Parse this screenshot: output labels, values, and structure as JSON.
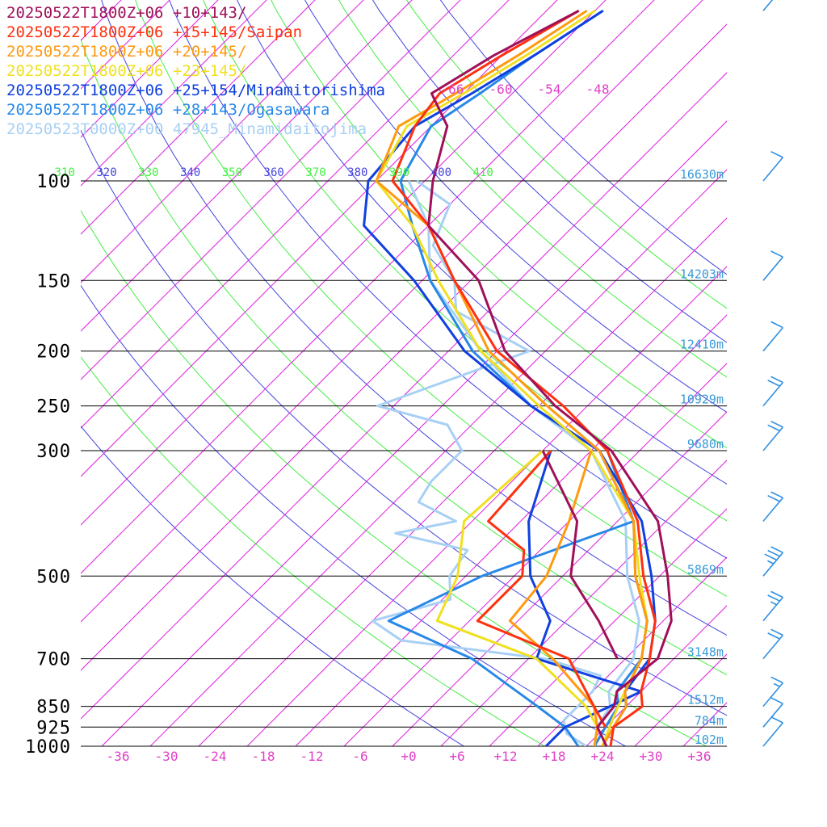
{
  "chart_data": {
    "type": "line",
    "title": "",
    "xlabel": "",
    "ylabel": "",
    "legend": [
      {
        "text": "20250522T1800Z+06 +10+143/",
        "color": "#a0105a"
      },
      {
        "text": "20250522T1800Z+06 +15+145/Saipan",
        "color": "#ff3010"
      },
      {
        "text": "20250522T1800Z+06 +20+145/",
        "color": "#ff9a10"
      },
      {
        "text": "20250522T1800Z+06 +23+145/",
        "color": "#f0e020"
      },
      {
        "text": "20250522T1800Z+06 +25+154/Minamitorishima",
        "color": "#1040e0"
      },
      {
        "text": "20250522T1800Z+06 +28+143/Ogasawara",
        "color": "#2888e8"
      },
      {
        "text": "20250523T0000Z+00 47945_Minamidaitojima",
        "color": "#a8d0f4"
      }
    ],
    "pressure_levels": [
      100,
      150,
      200,
      250,
      300,
      500,
      700,
      850,
      925,
      1000
    ],
    "pressure_labels": [
      "100",
      "150",
      "200",
      "250",
      "300",
      "500",
      "700",
      "850",
      "925",
      "1000"
    ],
    "heights": [
      {
        "p": 100,
        "label": "16630m"
      },
      {
        "p": 150,
        "label": "14203m"
      },
      {
        "p": 200,
        "label": "12410m"
      },
      {
        "p": 250,
        "label": "10929m"
      },
      {
        "p": 300,
        "label": "9680m"
      },
      {
        "p": 500,
        "label": "5869m"
      },
      {
        "p": 700,
        "label": "3148m"
      },
      {
        "p": 850,
        "label": "1512m"
      },
      {
        "p": 925,
        "label": "784m"
      },
      {
        "p": 1000,
        "label": "102m"
      }
    ],
    "temp_ticks": [
      "-36",
      "-30",
      "-24",
      "-18",
      "-12",
      "-6",
      "+0",
      "+6",
      "+12",
      "+18",
      "+24",
      "+30",
      "+36"
    ],
    "isotherm_labels": [
      "-66",
      "-60",
      "-54",
      "-48"
    ],
    "theta_labels": [
      "310",
      "320",
      "330",
      "340",
      "350",
      "360",
      "370",
      "380",
      "390",
      "400",
      "410"
    ],
    "colors": {
      "isotherm": "#dd22dd",
      "theta_green": "#44ee44",
      "theta_blue": "#4444dd",
      "barb": "#3090e0",
      "pressure_line": "#000000"
    },
    "series": [
      {
        "name": "20250522T1800Z+06 +10+143/",
        "color": "#a0105a",
        "temp": [
          [
            1000,
            24.5
          ],
          [
            925,
            21
          ],
          [
            850,
            20.5
          ],
          [
            800,
            19
          ],
          [
            700,
            20
          ],
          [
            600,
            17
          ],
          [
            500,
            11
          ],
          [
            400,
            3
          ],
          [
            300,
            -11.5
          ],
          [
            250,
            -24
          ],
          [
            200,
            -37
          ],
          [
            150,
            -49
          ],
          [
            120,
            -62
          ],
          [
            100,
            -67
          ],
          [
            80,
            -72
          ],
          [
            70,
            -78
          ],
          [
            60,
            -75
          ],
          [
            50,
            -70
          ]
        ],
        "dew": [
          [
            700,
            15
          ],
          [
            600,
            8
          ],
          [
            500,
            -1
          ],
          [
            400,
            -7
          ],
          [
            300,
            -20
          ]
        ]
      },
      {
        "name": "20250522T1800Z+06 +15+145/Saipan",
        "color": "#ff3010",
        "temp": [
          [
            1000,
            25
          ],
          [
            925,
            23
          ],
          [
            850,
            24
          ],
          [
            800,
            22
          ],
          [
            700,
            19
          ],
          [
            600,
            15
          ],
          [
            500,
            8
          ],
          [
            400,
            0.5
          ],
          [
            300,
            -12
          ],
          [
            250,
            -23
          ],
          [
            200,
            -38
          ],
          [
            150,
            -52
          ],
          [
            120,
            -62
          ],
          [
            100,
            -72
          ],
          [
            80,
            -76
          ],
          [
            70,
            -77
          ],
          [
            60,
            -74
          ],
          [
            50,
            -70
          ]
        ],
        "dew": [
          [
            925,
            22
          ],
          [
            850,
            18
          ],
          [
            700,
            9
          ],
          [
            600,
            -7
          ],
          [
            500,
            -7
          ],
          [
            450,
            -10
          ],
          [
            400,
            -18
          ],
          [
            300,
            -19
          ]
        ]
      },
      {
        "name": "20250522T1800Z+06 +20+145/",
        "color": "#ff9a10",
        "temp": [
          [
            1000,
            24
          ],
          [
            925,
            23
          ],
          [
            850,
            22
          ],
          [
            800,
            20
          ],
          [
            700,
            18
          ],
          [
            600,
            14
          ],
          [
            500,
            7
          ],
          [
            400,
            0
          ],
          [
            300,
            -13
          ],
          [
            250,
            -25
          ],
          [
            200,
            -39
          ],
          [
            150,
            -52
          ],
          [
            120,
            -62
          ],
          [
            100,
            -74
          ],
          [
            80,
            -78
          ],
          [
            70,
            -75
          ],
          [
            60,
            -72
          ],
          [
            50,
            -69
          ]
        ],
        "dew": [
          [
            1000,
            23
          ],
          [
            925,
            21
          ],
          [
            850,
            18
          ],
          [
            700,
            7
          ],
          [
            600,
            -3
          ],
          [
            500,
            -4
          ],
          [
            400,
            -8
          ],
          [
            300,
            -14
          ]
        ]
      },
      {
        "name": "20250522T1800Z+06 +23+145/",
        "color": "#f0e020",
        "temp": [
          [
            1000,
            24
          ],
          [
            925,
            22.5
          ],
          [
            850,
            21
          ],
          [
            800,
            20
          ],
          [
            700,
            18
          ],
          [
            600,
            14
          ],
          [
            500,
            7.5
          ],
          [
            400,
            0
          ],
          [
            300,
            -14
          ],
          [
            250,
            -26
          ],
          [
            200,
            -40
          ],
          [
            150,
            -54
          ],
          [
            120,
            -64
          ],
          [
            100,
            -74
          ],
          [
            80,
            -77
          ],
          [
            70,
            -74
          ],
          [
            60,
            -71
          ],
          [
            50,
            -68
          ]
        ],
        "dew": [
          [
            1000,
            23
          ],
          [
            925,
            21
          ],
          [
            850,
            17
          ],
          [
            700,
            5
          ],
          [
            600,
            -12
          ],
          [
            500,
            -15
          ],
          [
            400,
            -21
          ],
          [
            300,
            -20
          ]
        ]
      },
      {
        "name": "20250522T1800Z+06 +25+154/Minamitorishima",
        "color": "#1040e0",
        "temp": [
          [
            1000,
            24
          ],
          [
            925,
            23
          ],
          [
            850,
            22
          ],
          [
            800,
            20
          ],
          [
            700,
            19
          ],
          [
            600,
            15
          ],
          [
            500,
            9
          ],
          [
            400,
            1
          ],
          [
            300,
            -13
          ],
          [
            250,
            -27
          ],
          [
            200,
            -42
          ],
          [
            150,
            -57
          ],
          [
            120,
            -70
          ],
          [
            100,
            -75
          ],
          [
            80,
            -76
          ],
          [
            70,
            -73
          ],
          [
            60,
            -70
          ],
          [
            50,
            -67
          ]
        ],
        "dew": [
          [
            1000,
            17
          ],
          [
            925,
            17
          ],
          [
            850,
            20
          ],
          [
            800,
            22
          ],
          [
            700,
            5
          ],
          [
            600,
            2
          ],
          [
            500,
            -6
          ],
          [
            400,
            -13
          ],
          [
            300,
            -19
          ]
        ]
      },
      {
        "name": "20250522T1800Z+06 +28+143/Ogasawara",
        "color": "#2888e8",
        "temp": [
          [
            1000,
            23
          ],
          [
            925,
            22
          ],
          [
            850,
            21
          ],
          [
            800,
            19
          ],
          [
            700,
            18
          ],
          [
            600,
            14
          ],
          [
            500,
            7
          ],
          [
            400,
            0
          ],
          [
            300,
            -13
          ],
          [
            250,
            -27
          ],
          [
            200,
            -41
          ],
          [
            150,
            -55
          ],
          [
            120,
            -64
          ],
          [
            100,
            -71
          ],
          [
            80,
            -74
          ],
          [
            70,
            -72
          ],
          [
            60,
            -70
          ],
          [
            50,
            -67
          ]
        ],
        "dew": [
          [
            1000,
            21
          ],
          [
            925,
            17
          ],
          [
            850,
            11
          ],
          [
            700,
            -3
          ],
          [
            600,
            -18
          ],
          [
            500,
            -12
          ],
          [
            400,
            0
          ],
          [
            300,
            -12
          ]
        ]
      },
      {
        "name": "20250523T0000Z+00 47945_Minamidaitojima",
        "color": "#a8d0f4",
        "temp": [
          [
            1000,
            23
          ],
          [
            925,
            21
          ],
          [
            850,
            20
          ],
          [
            800,
            18
          ],
          [
            700,
            17
          ],
          [
            600,
            13
          ],
          [
            500,
            6
          ],
          [
            400,
            -1
          ],
          [
            300,
            -14
          ],
          [
            250,
            -27
          ],
          [
            200,
            -40
          ],
          [
            150,
            -55
          ],
          [
            120,
            -62
          ],
          [
            100,
            -70
          ]
        ],
        "dew": [
          [
            1000,
            22
          ],
          [
            950,
            18
          ],
          [
            900,
            16
          ],
          [
            850,
            16
          ],
          [
            800,
            16
          ],
          [
            750,
            15
          ],
          [
            700,
            6
          ],
          [
            650,
            -14
          ],
          [
            600,
            -20
          ],
          [
            550,
            -13
          ],
          [
            500,
            -16
          ],
          [
            450,
            -17
          ],
          [
            420,
            -28
          ],
          [
            400,
            -22
          ],
          [
            370,
            -29
          ],
          [
            340,
            -30
          ],
          [
            300,
            -30
          ],
          [
            270,
            -35
          ],
          [
            250,
            -46
          ],
          [
            200,
            -34
          ],
          [
            170,
            -48
          ],
          [
            150,
            -52
          ],
          [
            130,
            -59
          ],
          [
            110,
            -62
          ],
          [
            100,
            -69
          ]
        ]
      }
    ],
    "wind_barbs": [
      {
        "p": 1000,
        "speed_kt": 10
      },
      {
        "p": 925,
        "speed_kt": 10
      },
      {
        "p": 850,
        "speed_kt": 15
      },
      {
        "p": 700,
        "speed_kt": 20
      },
      {
        "p": 600,
        "speed_kt": 25
      },
      {
        "p": 500,
        "speed_kt": 35
      },
      {
        "p": 400,
        "speed_kt": 20
      },
      {
        "p": 300,
        "speed_kt": 20
      },
      {
        "p": 250,
        "speed_kt": 20
      },
      {
        "p": 200,
        "speed_kt": 10
      },
      {
        "p": 150,
        "speed_kt": 10
      },
      {
        "p": 100,
        "speed_kt": 10
      },
      {
        "p": 50,
        "speed_kt": 5
      },
      {
        "p": 40,
        "speed_kt": 5
      }
    ]
  }
}
